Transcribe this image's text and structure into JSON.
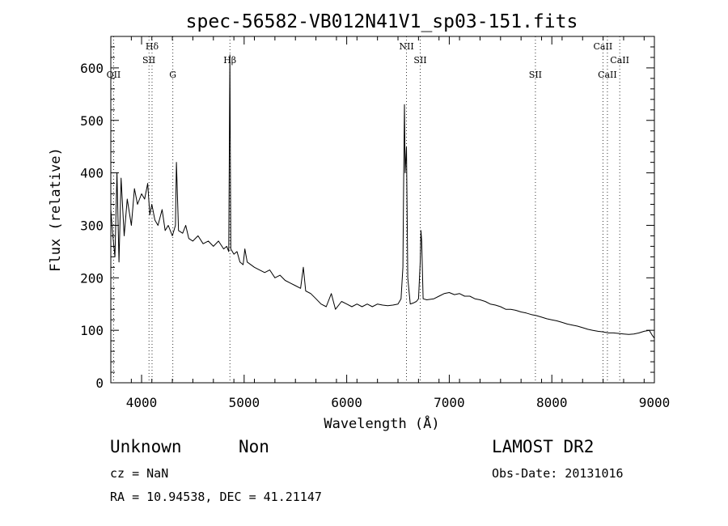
{
  "chart_data": {
    "type": "line",
    "title": "spec-56582-VB012N41V1_sp03-151.fits",
    "xlabel": "Wavelength (Å)",
    "ylabel": "Flux (relative)",
    "xlim": [
      3700,
      9000
    ],
    "ylim": [
      0,
      660
    ],
    "x_ticks": [
      4000,
      5000,
      6000,
      7000,
      8000,
      9000
    ],
    "y_ticks": [
      0,
      100,
      200,
      300,
      400,
      500,
      600
    ],
    "grid": false,
    "series": [
      {
        "x": [
          3700,
          3720,
          3740,
          3760,
          3780,
          3800,
          3830,
          3860,
          3900,
          3930,
          3960,
          4000,
          4030,
          4060,
          4080,
          4100,
          4130,
          4160,
          4200,
          4230,
          4260,
          4300,
          4330,
          4340,
          4360,
          4400,
          4430,
          4460,
          4500,
          4550,
          4600,
          4650,
          4700,
          4750,
          4800,
          4830,
          4850,
          4861,
          4870,
          4900,
          4930,
          4959,
          4990,
          5007,
          5030,
          5100,
          5150,
          5200,
          5250,
          5300,
          5350,
          5400,
          5450,
          5500,
          5550,
          5577,
          5600,
          5650,
          5700,
          5750,
          5800,
          5850,
          5890,
          5950,
          6000,
          6050,
          6100,
          6150,
          6200,
          6250,
          6300,
          6350,
          6400,
          6450,
          6500,
          6530,
          6548,
          6555,
          6563,
          6570,
          6583,
          6595,
          6620,
          6650,
          6680,
          6700,
          6717,
          6724,
          6731,
          6745,
          6780,
          6850,
          6900,
          6950,
          7000,
          7050,
          7100,
          7150,
          7200,
          7250,
          7300,
          7350,
          7400,
          7450,
          7500,
          7550,
          7600,
          7650,
          7700,
          7750,
          7800,
          7850,
          7900,
          7950,
          8000,
          8050,
          8100,
          8150,
          8200,
          8250,
          8300,
          8350,
          8400,
          8450,
          8500,
          8550,
          8600,
          8650,
          8700,
          8750,
          8800,
          8850,
          8900,
          8950,
          8980,
          9000
        ],
        "y": [
          330,
          280,
          240,
          400,
          230,
          390,
          280,
          350,
          300,
          370,
          340,
          360,
          350,
          380,
          320,
          340,
          310,
          300,
          330,
          290,
          300,
          280,
          300,
          420,
          290,
          285,
          300,
          275,
          270,
          280,
          265,
          270,
          260,
          270,
          255,
          260,
          250,
          625,
          255,
          245,
          250,
          230,
          225,
          255,
          230,
          220,
          215,
          210,
          215,
          200,
          205,
          195,
          190,
          185,
          180,
          220,
          175,
          170,
          160,
          150,
          145,
          170,
          140,
          155,
          150,
          145,
          150,
          145,
          150,
          145,
          150,
          148,
          147,
          148,
          150,
          160,
          220,
          380,
          530,
          400,
          450,
          200,
          150,
          152,
          155,
          160,
          230,
          290,
          270,
          160,
          158,
          160,
          165,
          170,
          172,
          168,
          170,
          165,
          165,
          160,
          158,
          155,
          150,
          148,
          145,
          140,
          140,
          138,
          135,
          133,
          130,
          128,
          125,
          122,
          120,
          118,
          115,
          112,
          110,
          108,
          105,
          102,
          100,
          98,
          97,
          95,
          95,
          94,
          93,
          92,
          93,
          95,
          98,
          100,
          90,
          85
        ]
      }
    ],
    "line_markers": [
      {
        "label": "OII",
        "x": 3727,
        "row": 3
      },
      {
        "label": "Hδ",
        "x": 4102,
        "row": 1
      },
      {
        "label": "SII",
        "x": 4072,
        "row": 2
      },
      {
        "label": "G",
        "x": 4305,
        "row": 3
      },
      {
        "label": "Hβ",
        "x": 4861,
        "row": 2
      },
      {
        "label": "NII",
        "x": 6583,
        "row": 1
      },
      {
        "label": "SII",
        "x": 6717,
        "row": 2
      },
      {
        "label": "SII",
        "x": 7840,
        "row": 3
      },
      {
        "label": "CaII",
        "x": 8498,
        "row": 1
      },
      {
        "label": "CaII",
        "x": 8542,
        "row": 3
      },
      {
        "label": "CaII",
        "x": 8662,
        "row": 2
      }
    ]
  },
  "info": {
    "class": "Unknown",
    "subclass": "Non",
    "survey": "LAMOST DR2",
    "redshift": "cz = NaN",
    "obs_date": "Obs-Date: 20131016",
    "coords": "RA =  10.94538, DEC =  41.21147"
  }
}
